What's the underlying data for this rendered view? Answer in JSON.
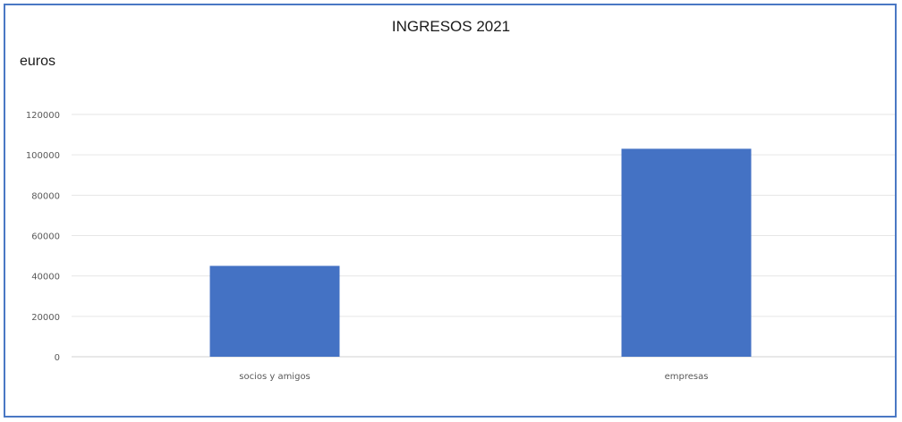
{
  "chart_data": {
    "type": "bar",
    "title": "INGRESOS 2021",
    "xlabel": "",
    "ylabel": "euros",
    "categories": [
      "socios y amigos",
      "empresas"
    ],
    "values": [
      45000,
      103000
    ],
    "ylim": [
      0,
      120000
    ],
    "yticks": [
      "0",
      "20000",
      "40000",
      "60000",
      "80000",
      "100000",
      "120000"
    ],
    "grid": true,
    "legend": "none",
    "bar_color": "#4472c4",
    "frame_color": "#4a78c4"
  }
}
